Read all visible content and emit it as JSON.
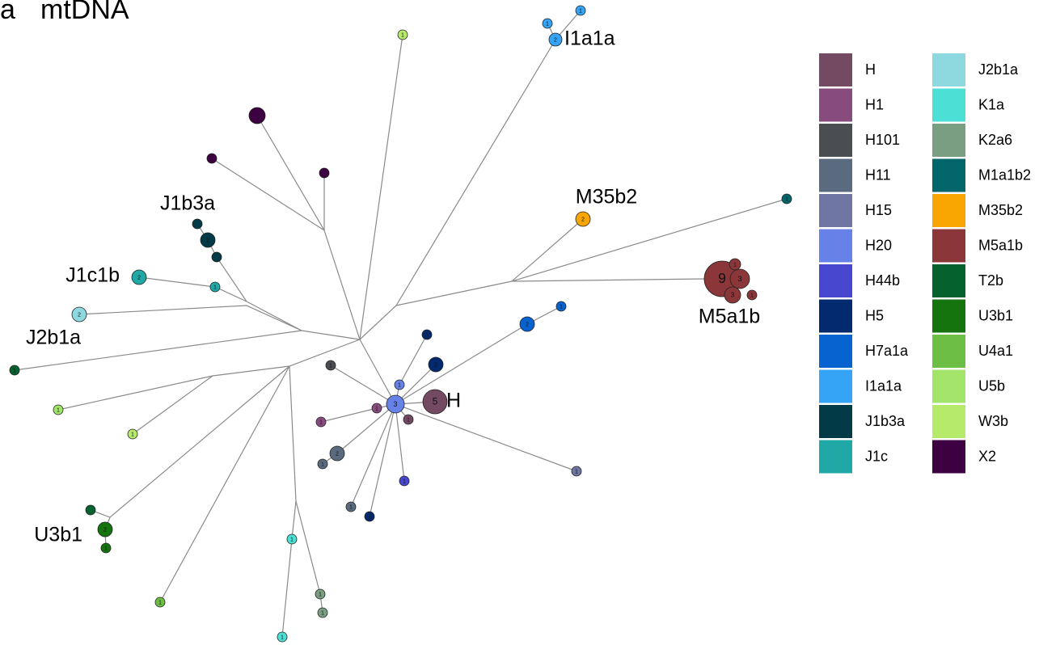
{
  "panel": "a",
  "title": "mtDNA",
  "group_labels": [
    "I1a1a",
    "M35b2",
    "J1b3a",
    "J1c1b",
    "J2b1a",
    "M5a1b",
    "H",
    "U3b1"
  ],
  "legend": [
    {
      "name": "H",
      "color": "#744a63"
    },
    {
      "name": "H1",
      "color": "#874b7e"
    },
    {
      "name": "H101",
      "color": "#4a4e53"
    },
    {
      "name": "H11",
      "color": "#5a6b80"
    },
    {
      "name": "H15",
      "color": "#6f76a3"
    },
    {
      "name": "H20",
      "color": "#6682e8"
    },
    {
      "name": "H44b",
      "color": "#4747d0"
    },
    {
      "name": "H5",
      "color": "#032a6e"
    },
    {
      "name": "H7a1a",
      "color": "#0763d0"
    },
    {
      "name": "I1a1a",
      "color": "#35a4f7"
    },
    {
      "name": "J1b3a",
      "color": "#033a48"
    },
    {
      "name": "J1c",
      "color": "#20a8a6"
    },
    {
      "name": "J2b1a",
      "color": "#8ed9df"
    },
    {
      "name": "K1a",
      "color": "#4cdfd6"
    },
    {
      "name": "K2a6",
      "color": "#7a9e82"
    },
    {
      "name": "M1a1b2",
      "color": "#02666a"
    },
    {
      "name": "M35b2",
      "color": "#f9a602"
    },
    {
      "name": "M5a1b",
      "color": "#8b3638"
    },
    {
      "name": "T2b",
      "color": "#05622f"
    },
    {
      "name": "U3b1",
      "color": "#16740f"
    },
    {
      "name": "U4a1",
      "color": "#6cbf44"
    },
    {
      "name": "U5b",
      "color": "#a3e46a"
    },
    {
      "name": "W3b",
      "color": "#b6ea6b"
    },
    {
      "name": "X2",
      "color": "#3d0040"
    }
  ],
  "nodes": [
    {
      "label": "1",
      "color": "#35a4f7"
    },
    {
      "label": "1",
      "color": "#35a4f7"
    },
    {
      "label": "2",
      "color": "#35a4f7"
    },
    {
      "label": "1",
      "color": "#b6ea6b"
    },
    {
      "color": "#3d0040"
    },
    {
      "color": "#3d0040"
    },
    {
      "color": "#3d0040"
    },
    {
      "color": "#033a48"
    },
    {
      "label": "2",
      "color": "#033a48"
    },
    {
      "color": "#033a48"
    },
    {
      "label": "2",
      "color": "#20a8a6"
    },
    {
      "label": "1",
      "color": "#20a8a6"
    },
    {
      "label": "2",
      "color": "#8ed9df"
    },
    {
      "label": "1",
      "color": "#05622f"
    },
    {
      "label": "1",
      "color": "#a3e46a"
    },
    {
      "label": "1",
      "color": "#b6ea6b"
    },
    {
      "label": "1",
      "color": "#02666a"
    },
    {
      "label": "2",
      "color": "#f9a602"
    },
    {
      "label": "9",
      "color": "#8b3638"
    },
    {
      "label": "3",
      "color": "#8b3638"
    },
    {
      "label": "1",
      "color": "#8b3638"
    },
    {
      "label": "3",
      "color": "#8b3638"
    },
    {
      "label": "1",
      "color": "#8b3638"
    },
    {
      "label": "1",
      "color": "#0763d0"
    },
    {
      "label": "2",
      "color": "#0763d0"
    },
    {
      "label": "1",
      "color": "#032a6e"
    },
    {
      "label": "2",
      "color": "#032a6e"
    },
    {
      "label": "1",
      "color": "#032a6e"
    },
    {
      "label": "1",
      "color": "#4a4e53"
    },
    {
      "label": "1",
      "color": "#6682e8"
    },
    {
      "label": "3",
      "color": "#6682e8"
    },
    {
      "label": "5",
      "color": "#744a63"
    },
    {
      "label": "1",
      "color": "#744a63"
    },
    {
      "label": "1",
      "color": "#874b7e"
    },
    {
      "label": "1",
      "color": "#874b7e"
    },
    {
      "label": "2",
      "color": "#5a6b80"
    },
    {
      "label": "1",
      "color": "#5a6b80"
    },
    {
      "label": "1",
      "color": "#5a6b80"
    },
    {
      "label": "1",
      "color": "#4747d0"
    },
    {
      "label": "1",
      "color": "#6f76a3"
    },
    {
      "color": "#05622f"
    },
    {
      "label": "2",
      "color": "#16740f"
    },
    {
      "label": "1",
      "color": "#16740f"
    },
    {
      "label": "1",
      "color": "#6cbf44"
    },
    {
      "label": "1",
      "color": "#4cdfd6"
    },
    {
      "label": "1",
      "color": "#4cdfd6"
    },
    {
      "label": "1",
      "color": "#7a9e82"
    },
    {
      "label": "1",
      "color": "#7a9e82"
    }
  ]
}
